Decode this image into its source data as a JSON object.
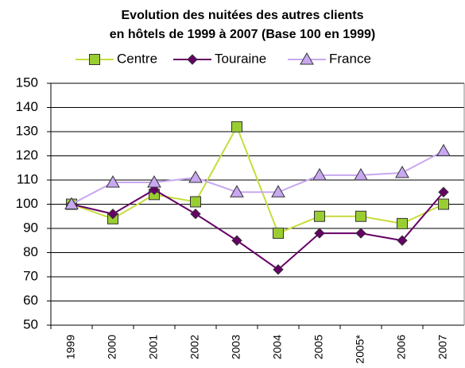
{
  "chart_data": {
    "type": "line",
    "title": [
      "Evolution des nuitées des autres clients",
      "en hôtels de 1999 à 2007 (Base 100 en 1999)"
    ],
    "categories": [
      "1999",
      "2000",
      "2001",
      "2002",
      "2003",
      "2004",
      "2005",
      "2005*",
      "2006",
      "2007"
    ],
    "series": [
      {
        "name": "Centre",
        "color": "#c8dc3c",
        "marker": "square",
        "marker_color": "#9acd32",
        "values": [
          100,
          94,
          104,
          101,
          132,
          88,
          95,
          95,
          92,
          100
        ]
      },
      {
        "name": "Touraine",
        "color": "#660066",
        "marker": "diamond",
        "marker_color": "#660066",
        "values": [
          100,
          96,
          106,
          96,
          85,
          73,
          88,
          88,
          85,
          105
        ]
      },
      {
        "name": "France",
        "color": "#c8a8f0",
        "marker": "triangle",
        "marker_color": "#c8a8f0",
        "values": [
          100,
          109,
          109,
          111,
          105,
          105,
          112,
          112,
          113,
          122
        ]
      }
    ],
    "ylim": [
      50,
      150
    ],
    "yticks": [
      50,
      60,
      70,
      80,
      90,
      100,
      110,
      120,
      130,
      140,
      150
    ],
    "grid": true,
    "legend": "top"
  }
}
